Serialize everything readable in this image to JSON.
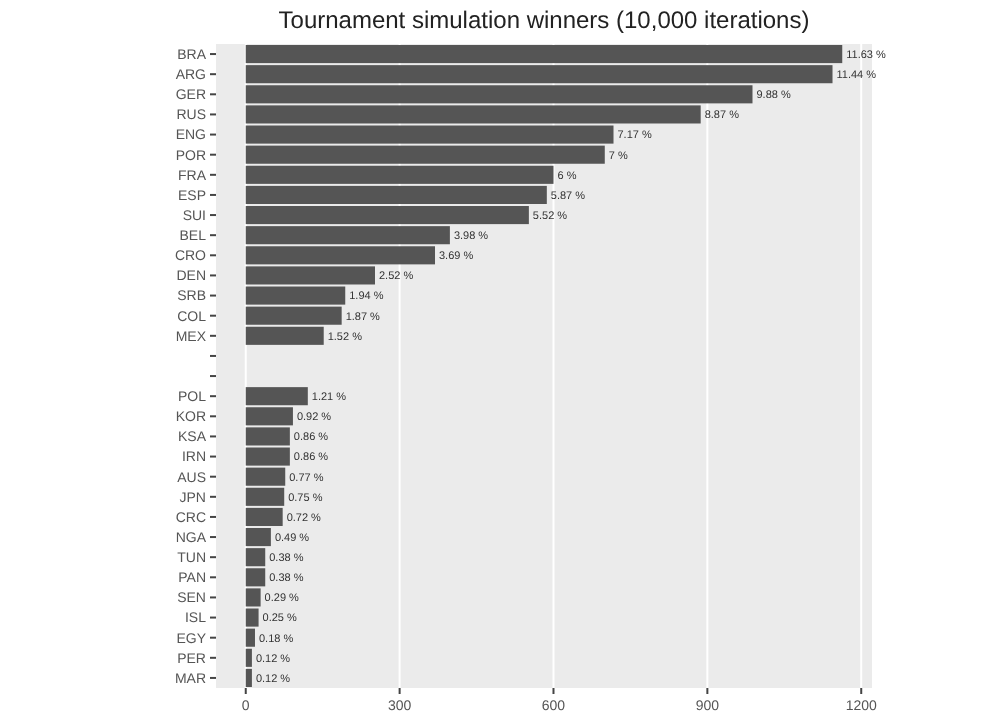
{
  "chart_data": {
    "type": "bar",
    "orientation": "horizontal",
    "title": "Tournament simulation winners (10,000 iterations)",
    "categories": [
      "BRA",
      "ARG",
      "GER",
      "RUS",
      "ENG",
      "POR",
      "FRA",
      "ESP",
      "SUI",
      "BEL",
      "CRO",
      "DEN",
      "SRB",
      "COL",
      "MEX",
      null,
      null,
      "POL",
      "KOR",
      "KSA",
      "IRN",
      "AUS",
      "JPN",
      "CRC",
      "NGA",
      "TUN",
      "PAN",
      "SEN",
      "ISL",
      "EGY",
      "PER",
      "MAR"
    ],
    "values": [
      1163,
      1144,
      988,
      887,
      717,
      700,
      600,
      587,
      552,
      398,
      369,
      252,
      194,
      187,
      152,
      null,
      null,
      121,
      92,
      86,
      86,
      77,
      75,
      72,
      49,
      38,
      38,
      29,
      25,
      18,
      12,
      12
    ],
    "annotations": [
      {
        "text": "11.63 %",
        "x": 1163,
        "y": "BRA"
      },
      {
        "text": "11.44 %",
        "x": 1144,
        "y": "ARG"
      },
      {
        "text": "9.88 %",
        "x": 988,
        "y": "GER"
      },
      {
        "text": "8.87 %",
        "x": 887,
        "y": "RUS"
      },
      {
        "text": "7.17 %",
        "x": 717,
        "y": "ENG"
      },
      {
        "text": "7 %",
        "x": 700,
        "y": "POR"
      },
      {
        "text": "6 %",
        "x": 600,
        "y": "FRA"
      },
      {
        "text": "5.87 %",
        "x": 587,
        "y": "ESP"
      },
      {
        "text": "5.52 %",
        "x": 552,
        "y": "SUI"
      },
      {
        "text": "3.98 %",
        "x": 398,
        "y": "BEL"
      },
      {
        "text": "3.69 %",
        "x": 369,
        "y": "CRO"
      },
      {
        "text": "2.52 %",
        "x": 252,
        "y": "DEN"
      },
      {
        "text": "1.94 %",
        "x": 194,
        "y": "SRB"
      },
      {
        "text": "1.87 %",
        "x": 187,
        "y": "COL"
      },
      {
        "text": "1.52 %",
        "x": 152,
        "y": "MEX"
      },
      {
        "text": "1.21 %",
        "x": 121,
        "y": "POL"
      },
      {
        "text": "0.92 %",
        "x": 92,
        "y": "KOR"
      },
      {
        "text": "0.86 %",
        "x": 86,
        "y": "KSA"
      },
      {
        "text": "0.86 %",
        "x": 86,
        "y": "IRN"
      },
      {
        "text": "0.77 %",
        "x": 77,
        "y": "AUS"
      },
      {
        "text": "0.75 %",
        "x": 75,
        "y": "JPN"
      },
      {
        "text": "0.72 %",
        "x": 72,
        "y": "CRC"
      },
      {
        "text": "0.49 %",
        "x": 49,
        "y": "NGA"
      },
      {
        "text": "0.38 %",
        "x": 38,
        "y": "TUN"
      },
      {
        "text": "0.38 %",
        "x": 38,
        "y": "PAN"
      },
      {
        "text": "0.29 %",
        "x": 29,
        "y": "SEN"
      },
      {
        "text": "0.25 %",
        "x": 25,
        "y": "ISL"
      },
      {
        "text": "0.18 %",
        "x": 18,
        "y": "EGY"
      },
      {
        "text": "0.12 %",
        "x": 12,
        "y": "PER"
      },
      {
        "text": "0.12 %",
        "x": 12,
        "y": "MAR"
      }
    ],
    "color": "#555555",
    "xlim": [
      -58,
      1221
    ],
    "xticks": [
      0,
      300,
      600,
      900,
      1200
    ],
    "grid": "x"
  }
}
